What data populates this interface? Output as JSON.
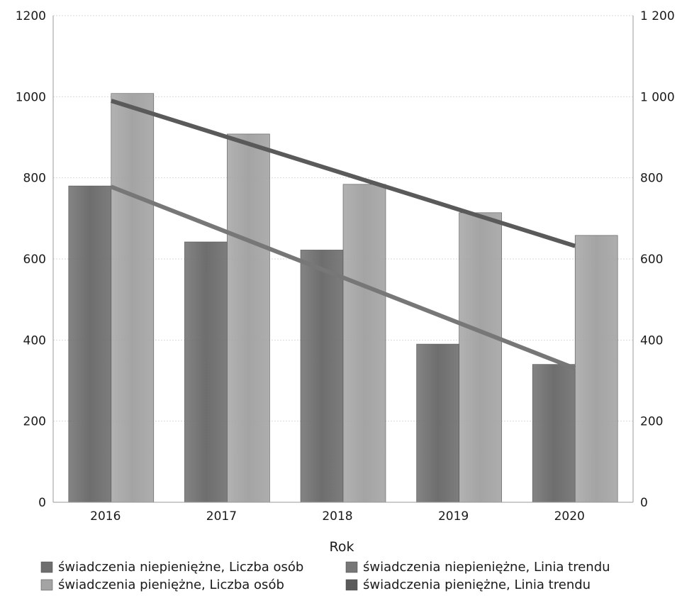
{
  "chart_data": {
    "type": "bar",
    "title": "",
    "xlabel": "Rok",
    "ylabel": "",
    "categories": [
      "2016",
      "2017",
      "2018",
      "2019",
      "2020"
    ],
    "ylim": [
      0,
      1200
    ],
    "y_ticks_left": [
      "0",
      "200",
      "400",
      "600",
      "800",
      "1000",
      "1200"
    ],
    "y_ticks_right": [
      "0",
      "200",
      "400",
      "600",
      "800",
      "1 000",
      "1 200"
    ],
    "y_tick_values": [
      0,
      200,
      400,
      600,
      800,
      1000,
      1200
    ],
    "series": [
      {
        "name": "świadczenia niepieniężne, Liczba osób",
        "values": [
          780,
          642,
          622,
          390,
          340
        ],
        "color": "#6e6e6e"
      },
      {
        "name": "świadczenia pieniężne, Liczba osób",
        "values": [
          1008,
          908,
          784,
          714,
          658
        ],
        "color": "#a4a4a4"
      }
    ],
    "trendlines": [
      {
        "name": "świadczenia niepieniężne, Linia trendu",
        "start": 778,
        "end": 330,
        "color": "#777777"
      },
      {
        "name": "świadczenia pieniężne, Linia trendu",
        "start": 990,
        "end": 632,
        "color": "#5a5a5a"
      }
    ],
    "grid": true,
    "legend_position": "bottom"
  }
}
